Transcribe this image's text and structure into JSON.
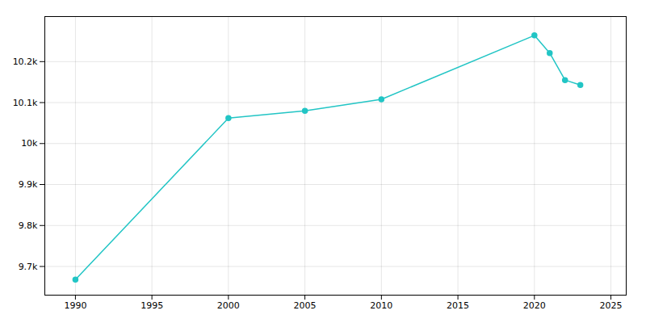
{
  "chart_data": {
    "type": "line",
    "x": [
      1990,
      2000,
      2005,
      2010,
      2020,
      2021,
      2022,
      2023
    ],
    "values": [
      9668,
      10062,
      10080,
      10108,
      10264,
      10221,
      10155,
      10143
    ],
    "color": "#22c5c5",
    "marker": "circle",
    "line_style": "solid",
    "xlim": [
      1988,
      2026
    ],
    "ylim": [
      9630,
      10310
    ],
    "xticks": [
      1990,
      1995,
      2000,
      2005,
      2010,
      2015,
      2020,
      2025
    ],
    "yticks": [
      {
        "value": 9700,
        "label": "9.7k"
      },
      {
        "value": 9800,
        "label": "9.8k"
      },
      {
        "value": 9900,
        "label": "9.9k"
      },
      {
        "value": 10000,
        "label": "10k"
      },
      {
        "value": 10100,
        "label": "10.1k"
      },
      {
        "value": 10200,
        "label": "10.2k"
      }
    ],
    "grid": true
  }
}
